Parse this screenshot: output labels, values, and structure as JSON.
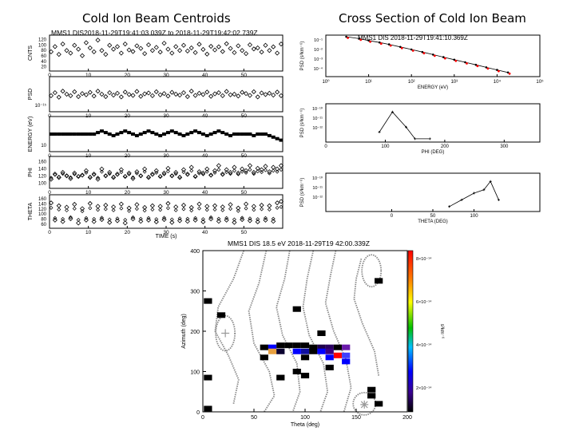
{
  "slide": {
    "title_left": "Cold Ion Beam Centroids",
    "title_right": "Cross Section of Cold Ion Beam"
  },
  "chart_data": [
    {
      "type": "scatter",
      "name": "centroid_stack",
      "title": "MMS1 DIS2018-11-29T19:41:03 039Z to 2018-11-29T19:42:02 739Z",
      "xlabel": "TIME (s)",
      "xticks": [
        "0",
        "10",
        "20",
        "30",
        "40",
        "50"
      ],
      "xlim": [
        0,
        60
      ],
      "panels": [
        {
          "ylabel": "CNTS",
          "yticks": [
            "20",
            "40",
            "60",
            "80",
            "100",
            "120"
          ],
          "ylim": [
            0,
            120
          ],
          "values": [
            65,
            85,
            55,
            95,
            70,
            60,
            90,
            75,
            50,
            100,
            80,
            65,
            110,
            70,
            55,
            90,
            75,
            85,
            60,
            95,
            72,
            66,
            88,
            78,
            58,
            92,
            70,
            82,
            64,
            98,
            75,
            60,
            85,
            70,
            90,
            68,
            80,
            62,
            94,
            74,
            56,
            86,
            72,
            84,
            66,
            96,
            78,
            62,
            88,
            70,
            58,
            92,
            76,
            80,
            64,
            90,
            70,
            84,
            60,
            95
          ]
        },
        {
          "ylabel": "PSD",
          "ytick_label": "10⁻¹⁵",
          "ylim": [
            0,
            1
          ],
          "values": [
            0.45,
            0.55,
            0.4,
            0.6,
            0.5,
            0.45,
            0.58,
            0.42,
            0.52,
            0.48,
            0.56,
            0.44,
            0.6,
            0.5,
            0.42,
            0.55,
            0.47,
            0.53,
            0.41,
            0.57,
            0.49,
            0.46,
            0.59,
            0.43,
            0.51,
            0.54,
            0.45,
            0.58,
            0.48,
            0.52,
            0.44,
            0.56,
            0.5,
            0.47,
            0.55,
            0.42,
            0.6,
            0.46,
            0.53,
            0.49,
            0.57,
            0.43,
            0.51,
            0.55,
            0.45,
            0.59,
            0.48,
            0.5,
            0.44,
            0.56,
            0.52,
            0.46,
            0.58,
            0.41,
            0.54,
            0.49,
            0.53,
            0.47,
            0.57,
            0.45
          ]
        },
        {
          "ylabel": "ENERGY (eV)",
          "ytick_label": "10",
          "ylim": [
            0,
            1
          ],
          "values": [
            0.5,
            0.5,
            0.5,
            0.5,
            0.5,
            0.5,
            0.5,
            0.5,
            0.5,
            0.5,
            0.5,
            0.5,
            0.55,
            0.6,
            0.55,
            0.5,
            0.45,
            0.5,
            0.55,
            0.6,
            0.55,
            0.5,
            0.45,
            0.5,
            0.55,
            0.6,
            0.55,
            0.5,
            0.45,
            0.5,
            0.55,
            0.6,
            0.55,
            0.5,
            0.45,
            0.5,
            0.55,
            0.6,
            0.55,
            0.5,
            0.45,
            0.5,
            0.55,
            0.6,
            0.55,
            0.5,
            0.45,
            0.5,
            0.5,
            0.5,
            0.5,
            0.5,
            0.45,
            0.5,
            0.5,
            0.5,
            0.45,
            0.4,
            0.35,
            0.3
          ]
        },
        {
          "ylabel": "PHI",
          "yticks": [
            "100",
            "120",
            "140",
            "160"
          ],
          "ylim": [
            90,
            170
          ],
          "values": [
            110,
            125,
            115,
            130,
            120,
            112,
            128,
            118,
            122,
            135,
            115,
            125,
            110,
            140,
            120,
            130,
            115,
            125,
            138,
            118,
            128,
            112,
            132,
            120,
            140,
            115,
            125,
            135,
            118,
            128,
            142,
            120,
            130,
            115,
            138,
            125,
            145,
            118,
            132,
            128,
            140,
            122,
            135,
            150,
            125,
            138,
            130,
            145,
            128,
            140,
            135,
            150,
            130,
            142,
            138,
            148,
            132,
            145,
            140,
            150
          ]
        },
        {
          "ylabel": "THETA",
          "yticks": [
            "60",
            "80",
            "100",
            "120",
            "140",
            "160"
          ],
          "ylim": [
            60,
            160
          ],
          "values": [
            140,
            80,
            130,
            75,
            125,
            85,
            135,
            70,
            120,
            80,
            138,
            75,
            128,
            82,
            132,
            72,
            126,
            78,
            136,
            70,
            122,
            84,
            134,
            76,
            124,
            80,
            130,
            74,
            128,
            82,
            138,
            72,
            126,
            78,
            132,
            76,
            124,
            80,
            136,
            74,
            128,
            84,
            130,
            76,
            126,
            80,
            134,
            72,
            122,
            82,
            136,
            78,
            128,
            74,
            132,
            80,
            130,
            76,
            140,
            145
          ]
        }
      ]
    },
    {
      "type": "line",
      "name": "psd_vs_energy",
      "title": "MMS1 DIS 2018-11-29T19:41:10.369Z",
      "xlabel": "ENERGY (eV)",
      "ylabel": "PSD (s³km⁻⁶)",
      "xscale": "log",
      "xticks": [
        "10⁰",
        "10¹",
        "10²",
        "10³",
        "10⁴",
        "10⁵"
      ],
      "yticks": [
        "10⁻¹",
        "10⁻²",
        "10⁻³",
        "10⁻⁴"
      ],
      "x": [
        3,
        6,
        10,
        18,
        30,
        55,
        100,
        180,
        320,
        560,
        1000,
        1800,
        3200,
        5600,
        10000,
        18000
      ],
      "y": [
        -1.0,
        -1.15,
        -1.3,
        -1.45,
        -1.6,
        -1.8,
        -2.0,
        -2.2,
        -2.4,
        -2.6,
        -2.8,
        -3.0,
        -3.2,
        -3.4,
        -3.6,
        -3.8
      ],
      "series": [
        {
          "color": "#000000"
        },
        {
          "color": "#ff0000"
        }
      ]
    },
    {
      "type": "line",
      "name": "psd_vs_phi",
      "xlabel": "PHI (DEG)",
      "ylabel": "PSD (s³km⁻⁶)",
      "xticks": [
        "0",
        "100",
        "200",
        "300"
      ],
      "yticks": [
        "10⁻¹⁰",
        "10⁻¹¹",
        "10⁻¹²"
      ],
      "xlim": [
        0,
        360
      ],
      "x": [
        90,
        112,
        135,
        150,
        175
      ],
      "y": [
        0.25,
        0.85,
        0.4,
        0.05,
        0.05
      ]
    },
    {
      "type": "line",
      "name": "psd_vs_theta",
      "xlabel": "THETA (DEG)",
      "ylabel": "PSD (s³km⁻⁶)",
      "xticks": [
        "0",
        "50",
        "100"
      ],
      "yticks": [
        "10⁻¹⁰",
        "10⁻¹¹",
        "10⁻¹²"
      ],
      "xlim": [
        -80,
        180
      ],
      "x": [
        70,
        85,
        100,
        112,
        120,
        130
      ],
      "y": [
        0.1,
        0.3,
        0.5,
        0.6,
        0.85,
        0.3
      ]
    },
    {
      "type": "heatmap",
      "name": "theta_phi_map",
      "title": "MMS1 DIS 18.5 eV 2018-11-29T19 42:00.339Z",
      "xlabel": "Theta (deg)",
      "ylabel": "Azimuth (deg)",
      "xticks": [
        "0",
        "50",
        "100",
        "150",
        "200"
      ],
      "yticks": [
        "0",
        "100",
        "200",
        "300",
        "400"
      ],
      "xlim": [
        0,
        200
      ],
      "ylim": [
        0,
        400
      ],
      "colorbar": {
        "label": "s³km⁻⁶",
        "ticks": [
          "8×10⁻¹⁴",
          "6×10⁻¹⁴",
          "4×10⁻¹⁴",
          "2×10⁻¹⁴"
        ]
      },
      "cells": [
        {
          "t": 5,
          "p": 275,
          "c": "#000000"
        },
        {
          "t": 18,
          "p": 240,
          "c": "#000000"
        },
        {
          "t": 60,
          "p": 160,
          "c": "#000000"
        },
        {
          "t": 68,
          "p": 160,
          "c": "#0000ff"
        },
        {
          "t": 76,
          "p": 165,
          "c": "#000000"
        },
        {
          "t": 84,
          "p": 165,
          "c": "#000000"
        },
        {
          "t": 92,
          "p": 165,
          "c": "#000000"
        },
        {
          "t": 100,
          "p": 165,
          "c": "#000000"
        },
        {
          "t": 108,
          "p": 160,
          "c": "#000000"
        },
        {
          "t": 116,
          "p": 160,
          "c": "#20004a"
        },
        {
          "t": 124,
          "p": 160,
          "c": "#2a0060"
        },
        {
          "t": 132,
          "p": 160,
          "c": "#000000"
        },
        {
          "t": 140,
          "p": 160,
          "c": "#6a1aaa"
        },
        {
          "t": 68,
          "p": 150,
          "c": "#e8a040"
        },
        {
          "t": 76,
          "p": 150,
          "c": "#0a0030"
        },
        {
          "t": 92,
          "p": 150,
          "c": "#0000ff"
        },
        {
          "t": 100,
          "p": 150,
          "c": "#1010a0"
        },
        {
          "t": 108,
          "p": 150,
          "c": "#000000"
        },
        {
          "t": 116,
          "p": 150,
          "c": "#0000ff"
        },
        {
          "t": 124,
          "p": 150,
          "c": "#3a0080"
        },
        {
          "t": 132,
          "p": 140,
          "c": "#ff0000"
        },
        {
          "t": 140,
          "p": 140,
          "c": "#4040ff"
        },
        {
          "t": 60,
          "p": 135,
          "c": "#000000"
        },
        {
          "t": 100,
          "p": 135,
          "c": "#000000"
        },
        {
          "t": 124,
          "p": 135,
          "c": "#0000ff"
        },
        {
          "t": 140,
          "p": 125,
          "c": "#0000ff"
        },
        {
          "t": 124,
          "p": 110,
          "c": "#000000"
        },
        {
          "t": 92,
          "p": 100,
          "c": "#000000"
        },
        {
          "t": 76,
          "p": 85,
          "c": "#000000"
        },
        {
          "t": 100,
          "p": 90,
          "c": "#000000"
        },
        {
          "t": 5,
          "p": 85,
          "c": "#000000"
        },
        {
          "t": 92,
          "p": 255,
          "c": "#000000"
        },
        {
          "t": 116,
          "p": 195,
          "c": "#000000"
        },
        {
          "t": 172,
          "p": 325,
          "c": "#000000"
        },
        {
          "t": 165,
          "p": 55,
          "c": "#000000"
        },
        {
          "t": 165,
          "p": 40,
          "c": "#000000"
        },
        {
          "t": 172,
          "p": 20,
          "c": "#000000"
        },
        {
          "t": 5,
          "p": 8,
          "c": "#000000"
        }
      ],
      "markers": [
        {
          "shape": "plus",
          "t": 22,
          "p": 195
        },
        {
          "shape": "star",
          "t": 158,
          "p": 18
        }
      ]
    }
  ]
}
